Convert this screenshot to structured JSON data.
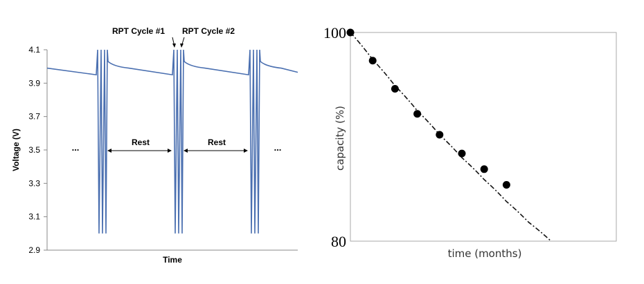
{
  "chart_data": [
    {
      "type": "line",
      "xlabel": "Time",
      "ylabel": "Voltage (V)",
      "ylim": [
        2.9,
        4.1
      ],
      "yticks": [
        "2.9",
        "3.1",
        "3.3",
        "3.5",
        "3.7",
        "3.9",
        "4.1"
      ],
      "grid": false,
      "color": "#4a6fb0",
      "rest_voltage": {
        "after_cycle_start": 4.0,
        "before_cycle_end": 3.95
      },
      "cycle_voltage_range": [
        3.0,
        4.1
      ],
      "annotations": {
        "rpt1": "RPT Cycle #1",
        "rpt2": "RPT Cycle #2",
        "rest1": "Rest",
        "rest2": "Rest",
        "ellipsis_left": "...",
        "ellipsis_right": "..."
      }
    },
    {
      "type": "scatter",
      "xlabel": "time (months)",
      "ylabel": "capacity (%)",
      "ylim": [
        80,
        100
      ],
      "yticks": [
        "80",
        "100"
      ],
      "grid": false,
      "points": [
        {
          "x": 0,
          "y": 100
        },
        {
          "x": 1,
          "y": 97.3
        },
        {
          "x": 2,
          "y": 94.6
        },
        {
          "x": 3,
          "y": 92.2
        },
        {
          "x": 4,
          "y": 90.2
        },
        {
          "x": 5,
          "y": 88.4
        },
        {
          "x": 6,
          "y": 86.9
        },
        {
          "x": 7,
          "y": 85.4
        }
      ],
      "fit": [
        {
          "x": 0,
          "y": 100
        },
        {
          "x": 1,
          "y": 97.4
        },
        {
          "x": 2,
          "y": 94.9
        },
        {
          "x": 3,
          "y": 92.5
        },
        {
          "x": 4,
          "y": 90.2
        },
        {
          "x": 5,
          "y": 88.0
        },
        {
          "x": 6,
          "y": 85.9
        },
        {
          "x": 7,
          "y": 83.8
        },
        {
          "x": 8,
          "y": 81.8
        },
        {
          "x": 9,
          "y": 80.0
        }
      ]
    }
  ]
}
